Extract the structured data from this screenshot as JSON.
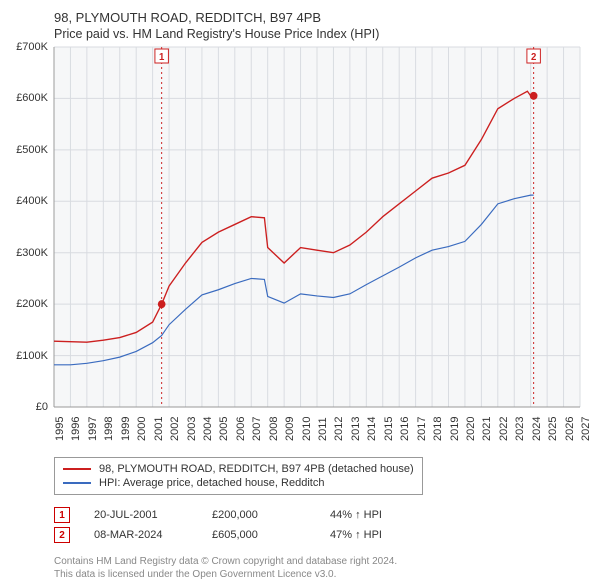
{
  "title": "98, PLYMOUTH ROAD, REDDITCH, B97 4PB",
  "subtitle": "Price paid vs. HM Land Registry's House Price Index (HPI)",
  "chart": {
    "type": "line",
    "background_color": "#ffffff",
    "plot_bg_color": "#f6f7f8",
    "grid_color": "#d8dbe0",
    "axis_color": "#999999",
    "x_axis_years": [
      1995,
      1996,
      1997,
      1998,
      1999,
      2000,
      2001,
      2002,
      2003,
      2004,
      2005,
      2006,
      2007,
      2008,
      2009,
      2010,
      2011,
      2012,
      2013,
      2014,
      2015,
      2016,
      2017,
      2018,
      2019,
      2020,
      2021,
      2022,
      2023,
      2024,
      2025,
      2026,
      2027
    ],
    "xlim": [
      1995,
      2027
    ],
    "y_ticks": [
      0,
      100000,
      200000,
      300000,
      400000,
      500000,
      600000,
      700000
    ],
    "y_tick_labels": [
      "£0",
      "£100K",
      "£200K",
      "£300K",
      "£400K",
      "£500K",
      "£600K",
      "£700K"
    ],
    "ylim": [
      0,
      700000
    ],
    "price_line": {
      "color": "#cc1f1f",
      "width": 1.4,
      "points": [
        [
          1995,
          128
        ],
        [
          1996,
          127
        ],
        [
          1997,
          126
        ],
        [
          1998,
          130
        ],
        [
          1999,
          135
        ],
        [
          2000,
          145
        ],
        [
          2001,
          165
        ],
        [
          2001.55,
          200
        ],
        [
          2002,
          235
        ],
        [
          2003,
          280
        ],
        [
          2004,
          320
        ],
        [
          2005,
          340
        ],
        [
          2006,
          355
        ],
        [
          2007,
          370
        ],
        [
          2007.8,
          368
        ],
        [
          2008,
          310
        ],
        [
          2009,
          280
        ],
        [
          2010,
          310
        ],
        [
          2011,
          305
        ],
        [
          2012,
          300
        ],
        [
          2013,
          315
        ],
        [
          2014,
          340
        ],
        [
          2015,
          370
        ],
        [
          2016,
          395
        ],
        [
          2017,
          420
        ],
        [
          2018,
          445
        ],
        [
          2019,
          455
        ],
        [
          2020,
          470
        ],
        [
          2021,
          520
        ],
        [
          2022,
          580
        ],
        [
          2023,
          600
        ],
        [
          2023.8,
          614
        ],
        [
          2024,
          605
        ],
        [
          2024.18,
          605
        ]
      ]
    },
    "hpi_line": {
      "color": "#3a6bbf",
      "width": 1.2,
      "points": [
        [
          1995,
          82
        ],
        [
          1996,
          82
        ],
        [
          1997,
          85
        ],
        [
          1998,
          90
        ],
        [
          1999,
          97
        ],
        [
          2000,
          108
        ],
        [
          2001,
          125
        ],
        [
          2001.55,
          139
        ],
        [
          2002,
          160
        ],
        [
          2003,
          190
        ],
        [
          2004,
          218
        ],
        [
          2005,
          228
        ],
        [
          2006,
          240
        ],
        [
          2007,
          250
        ],
        [
          2007.8,
          248
        ],
        [
          2008,
          215
        ],
        [
          2009,
          202
        ],
        [
          2010,
          220
        ],
        [
          2011,
          216
        ],
        [
          2012,
          213
        ],
        [
          2013,
          220
        ],
        [
          2014,
          238
        ],
        [
          2015,
          255
        ],
        [
          2016,
          272
        ],
        [
          2017,
          290
        ],
        [
          2018,
          305
        ],
        [
          2019,
          312
        ],
        [
          2020,
          322
        ],
        [
          2021,
          355
        ],
        [
          2022,
          395
        ],
        [
          2023,
          405
        ],
        [
          2024,
          412
        ],
        [
          2024.18,
          412
        ]
      ]
    },
    "event_lines": [
      {
        "x": 2001.55,
        "label": "1"
      },
      {
        "x": 2024.18,
        "label": "2"
      }
    ],
    "event_line_color": "#cc1f1f",
    "event_dash": "2,3",
    "dot_fill": "#cc1f1f",
    "dot_radius": 4,
    "label_fontsize": 11
  },
  "legend": {
    "series": [
      {
        "color": "#cc1f1f",
        "label": "98, PLYMOUTH ROAD, REDDITCH, B97 4PB (detached house)"
      },
      {
        "color": "#3a6bbf",
        "label": "HPI: Average price, detached house, Redditch"
      }
    ]
  },
  "markers": [
    {
      "num": "1",
      "date": "20-JUL-2001",
      "price": "£200,000",
      "pct": "44% ↑ HPI"
    },
    {
      "num": "2",
      "date": "08-MAR-2024",
      "price": "£605,000",
      "pct": "47% ↑ HPI"
    }
  ],
  "footer": {
    "line1": "Contains HM Land Registry data © Crown copyright and database right 2024.",
    "line2": "This data is licensed under the Open Government Licence v3.0."
  }
}
